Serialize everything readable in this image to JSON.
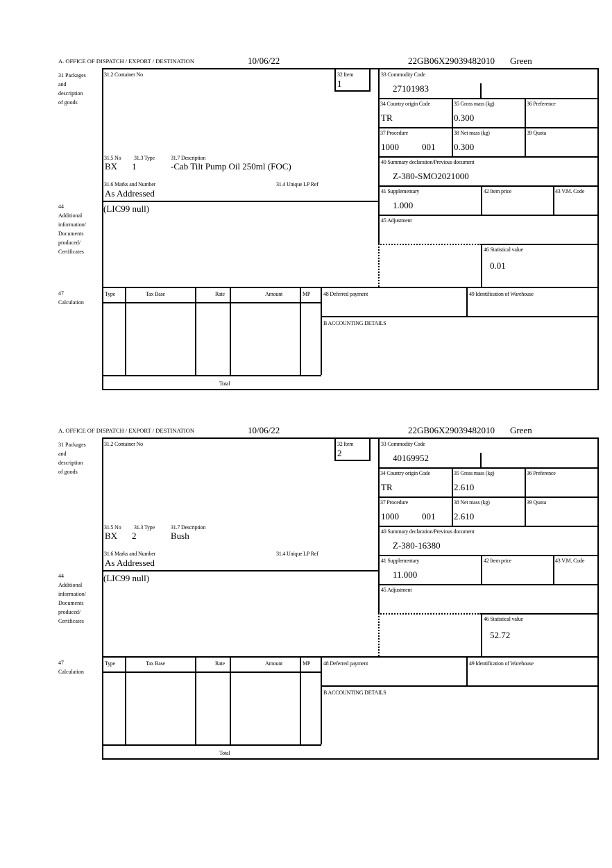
{
  "labels": {
    "office": "A. OFFICE OF DISPATCH / EXPORT / DESTINATION",
    "packages": "31 Packages\nand\ndescription\nof goods",
    "container_no": "31.2 Container No",
    "item": "32 Item",
    "no": "31.5 No",
    "type": "31.3 Type",
    "description": "31.7 Description",
    "marks": "31.6 Marks and Number",
    "unique_lp": "31.4 Unique LP Ref",
    "additional": "44\nAdditional\ninformation/\nDocuments\nproduced/\nCertificates",
    "commodity": "33 Commodity Code",
    "country": "34 Country origin Code",
    "gross": "35 Gross mass (kg)",
    "preference": "36 Preference",
    "procedure": "37 Procedure",
    "net": "38 Net mass (kg)",
    "quota": "39 Quota",
    "summary": "40 Summary declaration/Previous document",
    "supplementary": "41 Supplementary",
    "item_price": "42 Item price",
    "vm_code": "43 V.M. Code",
    "adjustment": "45 Adjustment",
    "statistical": "46 Statistical value",
    "calculation": "47\nCalculation",
    "calc_type": "Type",
    "calc_tax_base": "Tax Base",
    "calc_rate": "Rate",
    "calc_amount": "Amount",
    "calc_mp": "MP",
    "total": "Total",
    "deferred": "48 Deferred payment",
    "warehouse": "49 Identification of Warehouse",
    "accounting": "B ACCOUNTING DETAILS"
  },
  "forms": [
    {
      "date": "10/06/22",
      "reference": "22GB06X29039482010",
      "route": "Green",
      "item": "1",
      "no": "BX",
      "type": "1",
      "description": "-Cab Tilt Pump Oil 250ml (FOC)",
      "marks": "As Addressed",
      "additional_info": "(LIC99 null)",
      "commodity_code": "27101983",
      "country": "TR",
      "gross_mass": "0.300",
      "procedure": "1000",
      "procedure_extra": "001",
      "net_mass": "0.300",
      "summary": "Z-380-SMO2021000",
      "supplementary": "1.000",
      "statistical": "0.01"
    },
    {
      "date": "10/06/22",
      "reference": "22GB06X29039482010",
      "route": "Green",
      "item": "2",
      "no": "BX",
      "type": "2",
      "description": "Bush",
      "marks": "As Addressed",
      "additional_info": "(LIC99 null)",
      "commodity_code": "40169952",
      "country": "TR",
      "gross_mass": "2.610",
      "procedure": "1000",
      "procedure_extra": "001",
      "net_mass": "2.610",
      "summary": "Z-380-16380",
      "supplementary": "11.000",
      "statistical": "52.72"
    }
  ]
}
